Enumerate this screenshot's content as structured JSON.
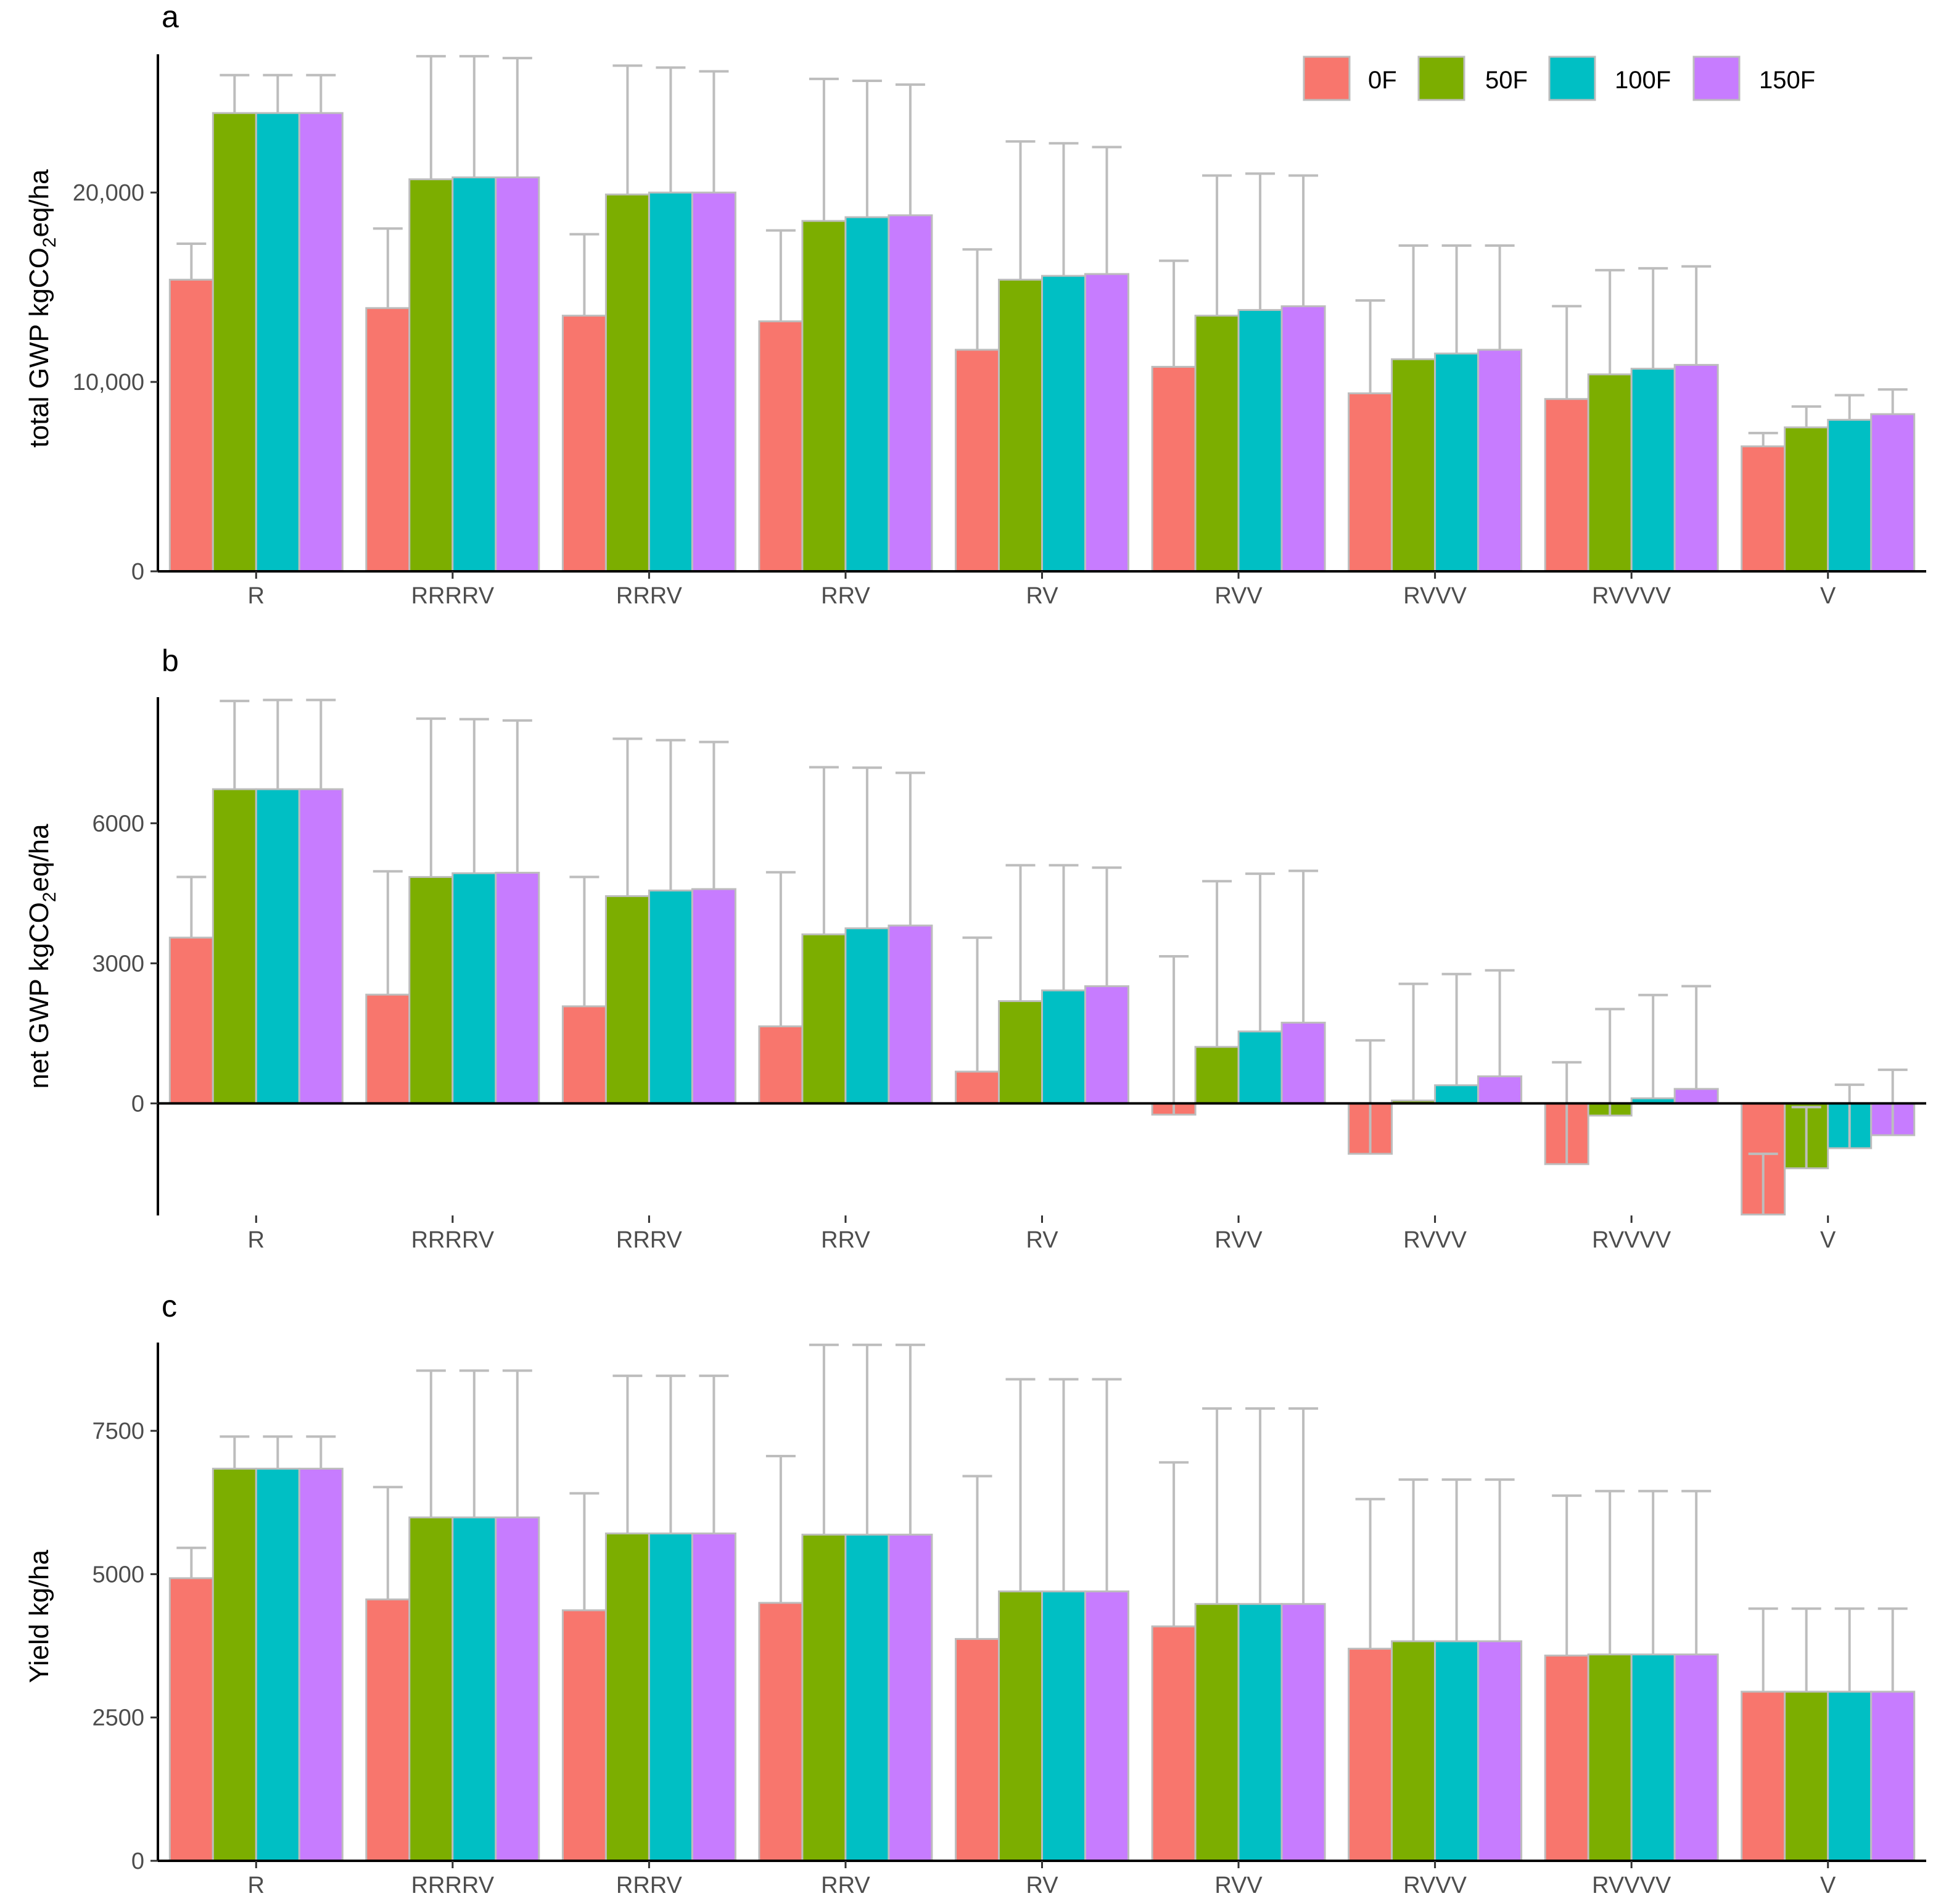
{
  "colors": {
    "0F": "#F8766D",
    "50F": "#7CAE00",
    "100F": "#00BFC4",
    "150F": "#C77CFF"
  },
  "chart_data": [
    {
      "panel": "a",
      "type": "bar",
      "title": "",
      "ylabel_parts": {
        "pre": "total GWP kgCO",
        "sub": "2",
        "post": "eq/ha"
      },
      "categories": [
        "R",
        "RRRRV",
        "RRRV",
        "RRV",
        "RV",
        "RVV",
        "RVVV",
        "RVVVV",
        "V"
      ],
      "ylim": [
        0,
        27300
      ],
      "yticks": [
        0,
        10000,
        20000
      ],
      "ytick_labels": [
        "0",
        "10,000",
        "20,000"
      ],
      "legend": {
        "position": "top-right",
        "entries": [
          "0F",
          "50F",
          "100F",
          "150F"
        ]
      },
      "series": [
        {
          "name": "0F",
          "values": [
            15400,
            13900,
            13500,
            13200,
            11700,
            10800,
            9400,
            9100,
            6600
          ],
          "upper": [
            17300,
            18100,
            17800,
            18000,
            17000,
            16400,
            14300,
            14000,
            7300
          ]
        },
        {
          "name": "50F",
          "values": [
            24200,
            20700,
            19900,
            18500,
            15400,
            13500,
            11200,
            10400,
            7600
          ],
          "upper": [
            26200,
            27200,
            26700,
            26000,
            22700,
            20900,
            17200,
            15900,
            8700
          ]
        },
        {
          "name": "100F",
          "values": [
            24200,
            20800,
            20000,
            18700,
            15600,
            13800,
            11500,
            10700,
            8000
          ],
          "upper": [
            26200,
            27200,
            26600,
            25900,
            22600,
            21000,
            17200,
            16000,
            9300
          ]
        },
        {
          "name": "150F",
          "values": [
            24200,
            20800,
            20000,
            18800,
            15700,
            14000,
            11700,
            10900,
            8300
          ],
          "upper": [
            26200,
            27100,
            26400,
            25700,
            22400,
            20900,
            17200,
            16100,
            9600
          ]
        }
      ]
    },
    {
      "panel": "b",
      "type": "bar",
      "title": "",
      "ylabel_parts": {
        "pre": "net GWP kgCO",
        "sub": "2",
        "post": "eq/ha"
      },
      "categories": [
        "R",
        "RRRRV",
        "RRRV",
        "RRV",
        "RV",
        "RVV",
        "RVVV",
        "RVVVV",
        "V"
      ],
      "ylim": [
        -2400,
        8700
      ],
      "yticks": [
        0,
        3000,
        6000
      ],
      "ytick_labels": [
        "0",
        "3000",
        "6000"
      ],
      "series": [
        {
          "name": "0F",
          "values": [
            3550,
            2330,
            2080,
            1650,
            680,
            -240,
            -1080,
            -1300,
            -2380
          ],
          "err_end": [
            4850,
            4970,
            4850,
            4950,
            3550,
            3150,
            1350,
            880,
            -1080
          ]
        },
        {
          "name": "50F",
          "values": [
            6730,
            4850,
            4440,
            3620,
            2190,
            1210,
            60,
            -260,
            -1390
          ],
          "err_end": [
            8620,
            8240,
            7810,
            7200,
            5100,
            4760,
            2560,
            2020,
            -80
          ]
        },
        {
          "name": "100F",
          "values": [
            6730,
            4930,
            4560,
            3750,
            2420,
            1540,
            390,
            110,
            -960
          ],
          "err_end": [
            8640,
            8230,
            7780,
            7190,
            5100,
            4920,
            2770,
            2320,
            400
          ]
        },
        {
          "name": "150F",
          "values": [
            6730,
            4940,
            4590,
            3810,
            2510,
            1730,
            580,
            310,
            -680
          ],
          "err_end": [
            8640,
            8200,
            7740,
            7080,
            5050,
            4980,
            2850,
            2510,
            720
          ]
        }
      ]
    },
    {
      "panel": "c",
      "type": "bar",
      "title": "",
      "ylabel_parts": {
        "pre": "Yield kg/ha",
        "sub": "",
        "post": ""
      },
      "categories": [
        "R",
        "RRRRV",
        "RRRV",
        "RRV",
        "RV",
        "RVV",
        "RVVV",
        "RVVVV",
        "V"
      ],
      "ylim": [
        0,
        9040
      ],
      "yticks": [
        0,
        2500,
        5000,
        7500
      ],
      "ytick_labels": [
        "0",
        "2500",
        "5000",
        "7500"
      ],
      "series": [
        {
          "name": "0F",
          "values": [
            4930,
            4560,
            4370,
            4500,
            3870,
            4090,
            3700,
            3580,
            2950
          ],
          "upper": [
            5460,
            6520,
            6410,
            7060,
            6710,
            6950,
            6310,
            6370,
            4400
          ]
        },
        {
          "name": "50F",
          "values": [
            6840,
            5990,
            5710,
            5690,
            4700,
            4480,
            3830,
            3600,
            2950
          ],
          "upper": [
            7400,
            8550,
            8460,
            9000,
            8400,
            7890,
            6650,
            6450,
            4400
          ]
        },
        {
          "name": "100F",
          "values": [
            6840,
            5990,
            5710,
            5690,
            4700,
            4480,
            3830,
            3600,
            2950
          ],
          "upper": [
            7400,
            8550,
            8460,
            9000,
            8400,
            7890,
            6650,
            6450,
            4400
          ]
        },
        {
          "name": "150F",
          "values": [
            6840,
            5990,
            5710,
            5690,
            4700,
            4480,
            3830,
            3600,
            2950
          ],
          "upper": [
            7400,
            8550,
            8460,
            9000,
            8400,
            7890,
            6650,
            6450,
            4400
          ]
        }
      ]
    }
  ]
}
